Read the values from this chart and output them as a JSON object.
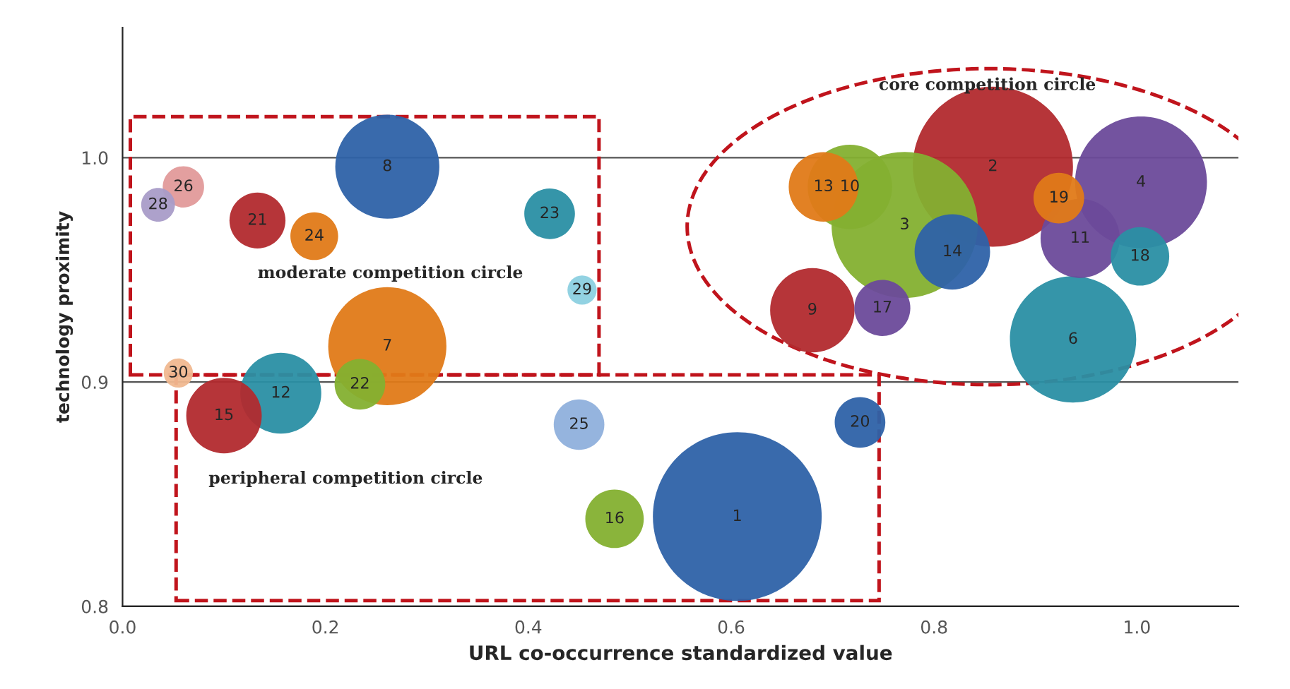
{
  "chart_data": {
    "type": "bubble",
    "xlabel": "URL co-occurrence standardized value",
    "ylabel": "technology proximity",
    "xlim": [
      0,
      1.1
    ],
    "xticks": [
      {
        "value": 0,
        "label": "0.0"
      },
      0.2,
      0.4,
      0.6,
      0.8,
      {
        "value": 1,
        "label": "1.0"
      }
    ],
    "ylim": [
      0.8,
      1.058
    ],
    "yticks": [
      0.8,
      0.9,
      {
        "value": 1,
        "label": "1.0"
      }
    ],
    "grid": "y",
    "annotations": [
      "core competition circle",
      "moderate competition circle",
      "peripheral competition circle"
    ],
    "series": [
      {
        "name": "1",
        "color": "#2e62a8",
        "x": [
          0.606
        ],
        "values": [
          0.84
        ],
        "sizes": [
          1
        ]
      },
      {
        "name": "2",
        "color": "#b22a2e",
        "x": [
          0.858
        ],
        "values": [
          0.996
        ],
        "sizes": [
          0.9
        ]
      },
      {
        "name": "3",
        "color": "#84b030",
        "x": [
          0.771
        ],
        "values": [
          0.97
        ],
        "sizes": [
          0.75
        ]
      },
      {
        "name": "4",
        "color": "#6b4a9a",
        "x": [
          1.004
        ],
        "values": [
          0.989
        ],
        "sizes": [
          0.61
        ]
      },
      {
        "name": "6",
        "color": "#2a8fa4",
        "x": [
          0.937
        ],
        "values": [
          0.919
        ],
        "sizes": [
          0.56
        ]
      },
      {
        "name": "7",
        "color": "#e07a18",
        "x": [
          0.261
        ],
        "values": [
          0.916
        ],
        "sizes": [
          0.49
        ]
      },
      {
        "name": "8",
        "color": "#2e62a8",
        "x": [
          0.261
        ],
        "values": [
          0.996
        ],
        "sizes": [
          0.38
        ]
      },
      {
        "name": "9",
        "color": "#b22a2e",
        "x": [
          0.68
        ],
        "values": [
          0.932
        ],
        "sizes": [
          0.25
        ]
      },
      {
        "name": "10",
        "color": "#84b030",
        "x": [
          0.717
        ],
        "values": [
          0.987
        ],
        "sizes": [
          0.25
        ]
      },
      {
        "name": "11",
        "color": "#6b4a9a",
        "x": [
          0.944
        ],
        "values": [
          0.964
        ],
        "sizes": [
          0.22
        ]
      },
      {
        "name": "12",
        "color": "#2a8fa4",
        "x": [
          0.156
        ],
        "values": [
          0.895
        ],
        "sizes": [
          0.23
        ]
      },
      {
        "name": "13",
        "color": "#e07a18",
        "x": [
          0.691
        ],
        "values": [
          0.987
        ],
        "sizes": [
          0.17
        ]
      },
      {
        "name": "14",
        "color": "#2e62a8",
        "x": [
          0.818
        ],
        "values": [
          0.958
        ],
        "sizes": [
          0.2
        ]
      },
      {
        "name": "15",
        "color": "#b22a2e",
        "x": [
          0.1
        ],
        "values": [
          0.885
        ],
        "sizes": [
          0.2
        ]
      },
      {
        "name": "16",
        "color": "#84b030",
        "x": [
          0.485
        ],
        "values": [
          0.839
        ],
        "sizes": [
          0.12
        ]
      },
      {
        "name": "17",
        "color": "#6b4a9a",
        "x": [
          0.749
        ],
        "values": [
          0.933
        ],
        "sizes": [
          0.11
        ]
      },
      {
        "name": "18",
        "color": "#2a8fa4",
        "x": [
          1.003
        ],
        "values": [
          0.956
        ],
        "sizes": [
          0.12
        ]
      },
      {
        "name": "19",
        "color": "#e07a18",
        "x": [
          0.923
        ],
        "values": [
          0.982
        ],
        "sizes": [
          0.09
        ]
      },
      {
        "name": "20",
        "color": "#2e62a8",
        "x": [
          0.727
        ],
        "values": [
          0.882
        ],
        "sizes": [
          0.09
        ]
      },
      {
        "name": "21",
        "color": "#b22a2e",
        "x": [
          0.133
        ],
        "values": [
          0.972
        ],
        "sizes": [
          0.11
        ]
      },
      {
        "name": "22",
        "color": "#84b030",
        "x": [
          0.234
        ],
        "values": [
          0.899
        ],
        "sizes": [
          0.09
        ]
      },
      {
        "name": "23",
        "color": "#2a8fa4",
        "x": [
          0.421
        ],
        "values": [
          0.975
        ],
        "sizes": [
          0.09
        ]
      },
      {
        "name": "24",
        "color": "#e07a18",
        "x": [
          0.189
        ],
        "values": [
          0.965
        ],
        "sizes": [
          0.08
        ]
      },
      {
        "name": "25",
        "color": "#8fb0dc",
        "x": [
          0.45
        ],
        "values": [
          0.881
        ],
        "sizes": [
          0.09
        ]
      },
      {
        "name": "26",
        "color": "#e29a9a",
        "x": [
          0.06
        ],
        "values": [
          0.987
        ],
        "sizes": [
          0.06
        ]
      },
      {
        "name": "28",
        "color": "#a99cc8",
        "x": [
          0.035
        ],
        "values": [
          0.979
        ],
        "sizes": [
          0.04
        ]
      },
      {
        "name": "29",
        "color": "#8cd0e0",
        "x": [
          0.453
        ],
        "values": [
          0.941
        ],
        "sizes": [
          0.03
        ]
      },
      {
        "name": "30",
        "color": "#f0b890",
        "x": [
          0.055
        ],
        "values": [
          0.904
        ],
        "sizes": [
          0.03
        ]
      }
    ]
  }
}
